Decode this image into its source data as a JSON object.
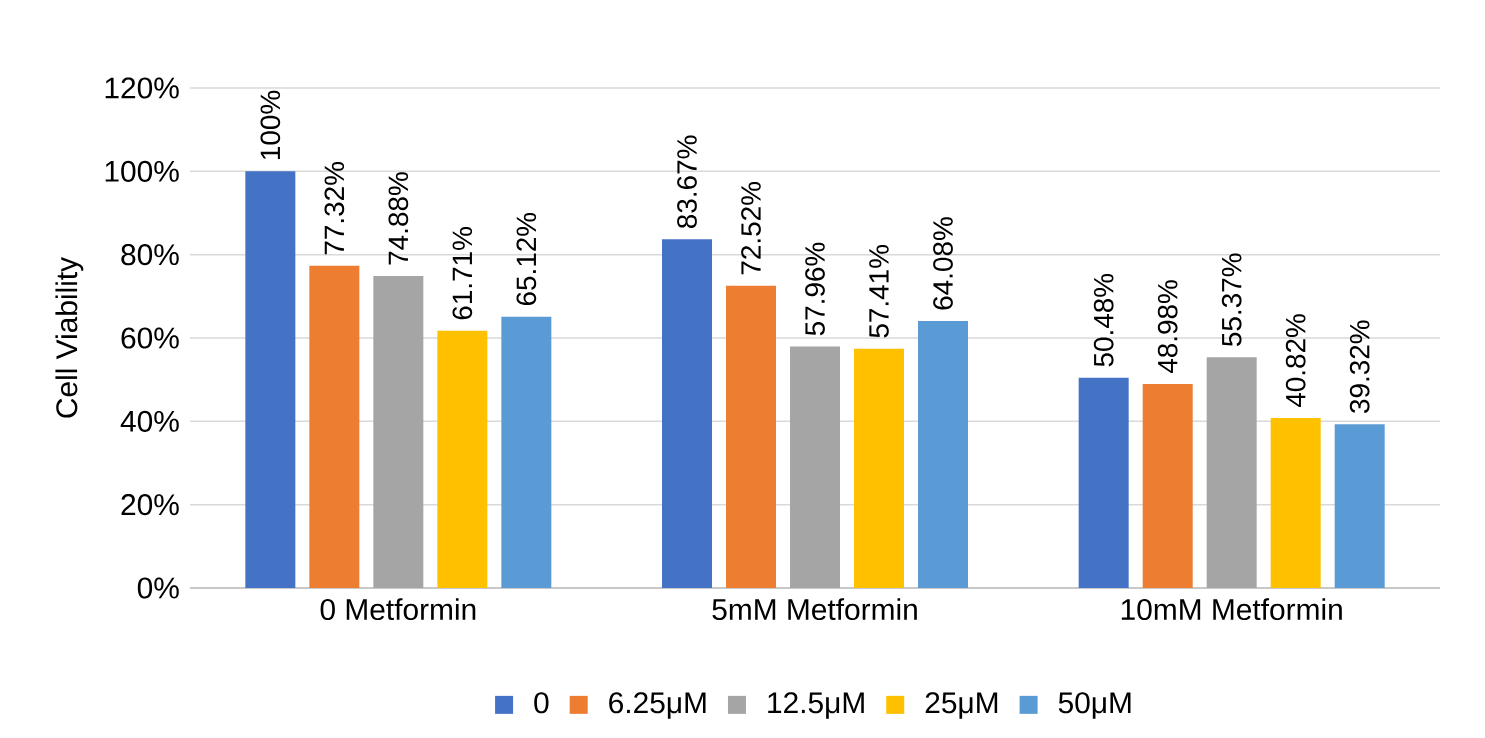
{
  "chart_data": {
    "type": "bar",
    "ylabel": "Cell Viability",
    "categories": [
      "0 Metformin",
      "5mM Metformin",
      "10mM Metformin"
    ],
    "series": [
      {
        "name": "0",
        "color": "#4472c4",
        "values": [
          100,
          83.67,
          50.48
        ],
        "value_labels": [
          "100%",
          "83.67%",
          "50.48%"
        ]
      },
      {
        "name": "6.25μM",
        "color": "#ed7d31",
        "values": [
          77.32,
          72.52,
          48.98
        ],
        "value_labels": [
          "77.32%",
          "72.52%",
          "48.98%"
        ]
      },
      {
        "name": "12.5μM",
        "color": "#a5a5a5",
        "values": [
          74.88,
          57.96,
          55.37
        ],
        "value_labels": [
          "74.88%",
          "57.96%",
          "55.37%"
        ]
      },
      {
        "name": "25μM",
        "color": "#ffc000",
        "values": [
          61.71,
          57.41,
          40.82
        ],
        "value_labels": [
          "61.71%",
          "57.41%",
          "40.82%"
        ]
      },
      {
        "name": "50μM",
        "color": "#5b9bd5",
        "values": [
          65.12,
          64.08,
          39.32
        ],
        "value_labels": [
          "65.12%",
          "64.08%",
          "39.32%"
        ]
      }
    ],
    "ylim": [
      0,
      120
    ],
    "yticks": [
      {
        "value": 0,
        "label": "0%"
      },
      {
        "value": 20,
        "label": "20%"
      },
      {
        "value": 40,
        "label": "40%"
      },
      {
        "value": 60,
        "label": "60%"
      },
      {
        "value": 80,
        "label": "80%"
      },
      {
        "value": 100,
        "label": "100%"
      },
      {
        "value": 120,
        "label": "120%"
      }
    ],
    "grid": "y",
    "legend": "bottom"
  }
}
